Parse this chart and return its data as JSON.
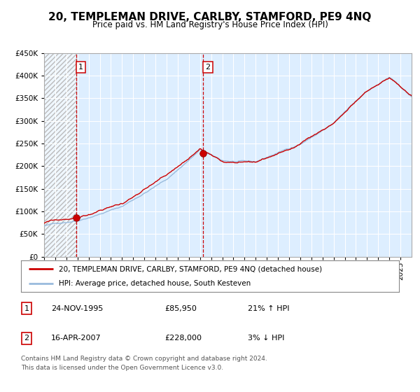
{
  "title": "20, TEMPLEMAN DRIVE, CARLBY, STAMFORD, PE9 4NQ",
  "subtitle": "Price paid vs. HM Land Registry's House Price Index (HPI)",
  "legend_line1": "20, TEMPLEMAN DRIVE, CARLBY, STAMFORD, PE9 4NQ (detached house)",
  "legend_line2": "HPI: Average price, detached house, South Kesteven",
  "transaction1_date": "24-NOV-1995",
  "transaction1_price": "£85,950",
  "transaction1_hpi": "21% ↑ HPI",
  "transaction2_date": "16-APR-2007",
  "transaction2_price": "£228,000",
  "transaction2_hpi": "3% ↓ HPI",
  "footnote1": "Contains HM Land Registry data © Crown copyright and database right 2024.",
  "footnote2": "This data is licensed under the Open Government Licence v3.0.",
  "sale1_year": 1995.9,
  "sale1_price": 85950,
  "sale2_year": 2007.29,
  "sale2_price": 228000,
  "red_color": "#cc0000",
  "blue_color": "#99bbdd",
  "plot_bg_color": "#ddeeff"
}
